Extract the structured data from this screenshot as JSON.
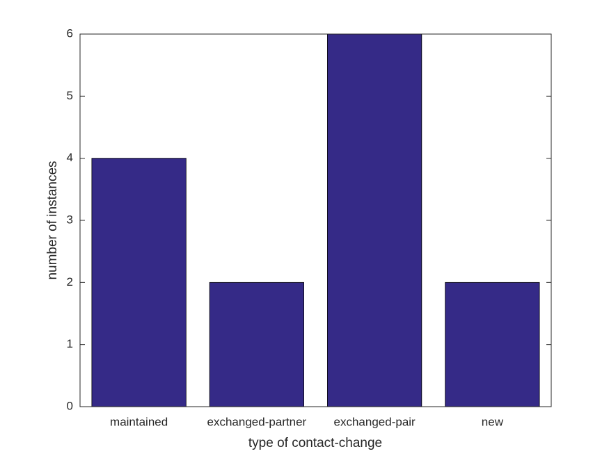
{
  "chart_data": {
    "type": "bar",
    "xlabel": "type of contact-change",
    "ylabel": "number of instances",
    "categories": [
      "maintained",
      "exchanged-partner",
      "exchanged-pair",
      "new"
    ],
    "values": [
      4,
      2,
      6,
      2
    ],
    "color": "#352a87",
    "ylim": [
      0,
      6
    ],
    "yticks": [
      0,
      1,
      2,
      3,
      4,
      5,
      6
    ],
    "grid": false
  }
}
